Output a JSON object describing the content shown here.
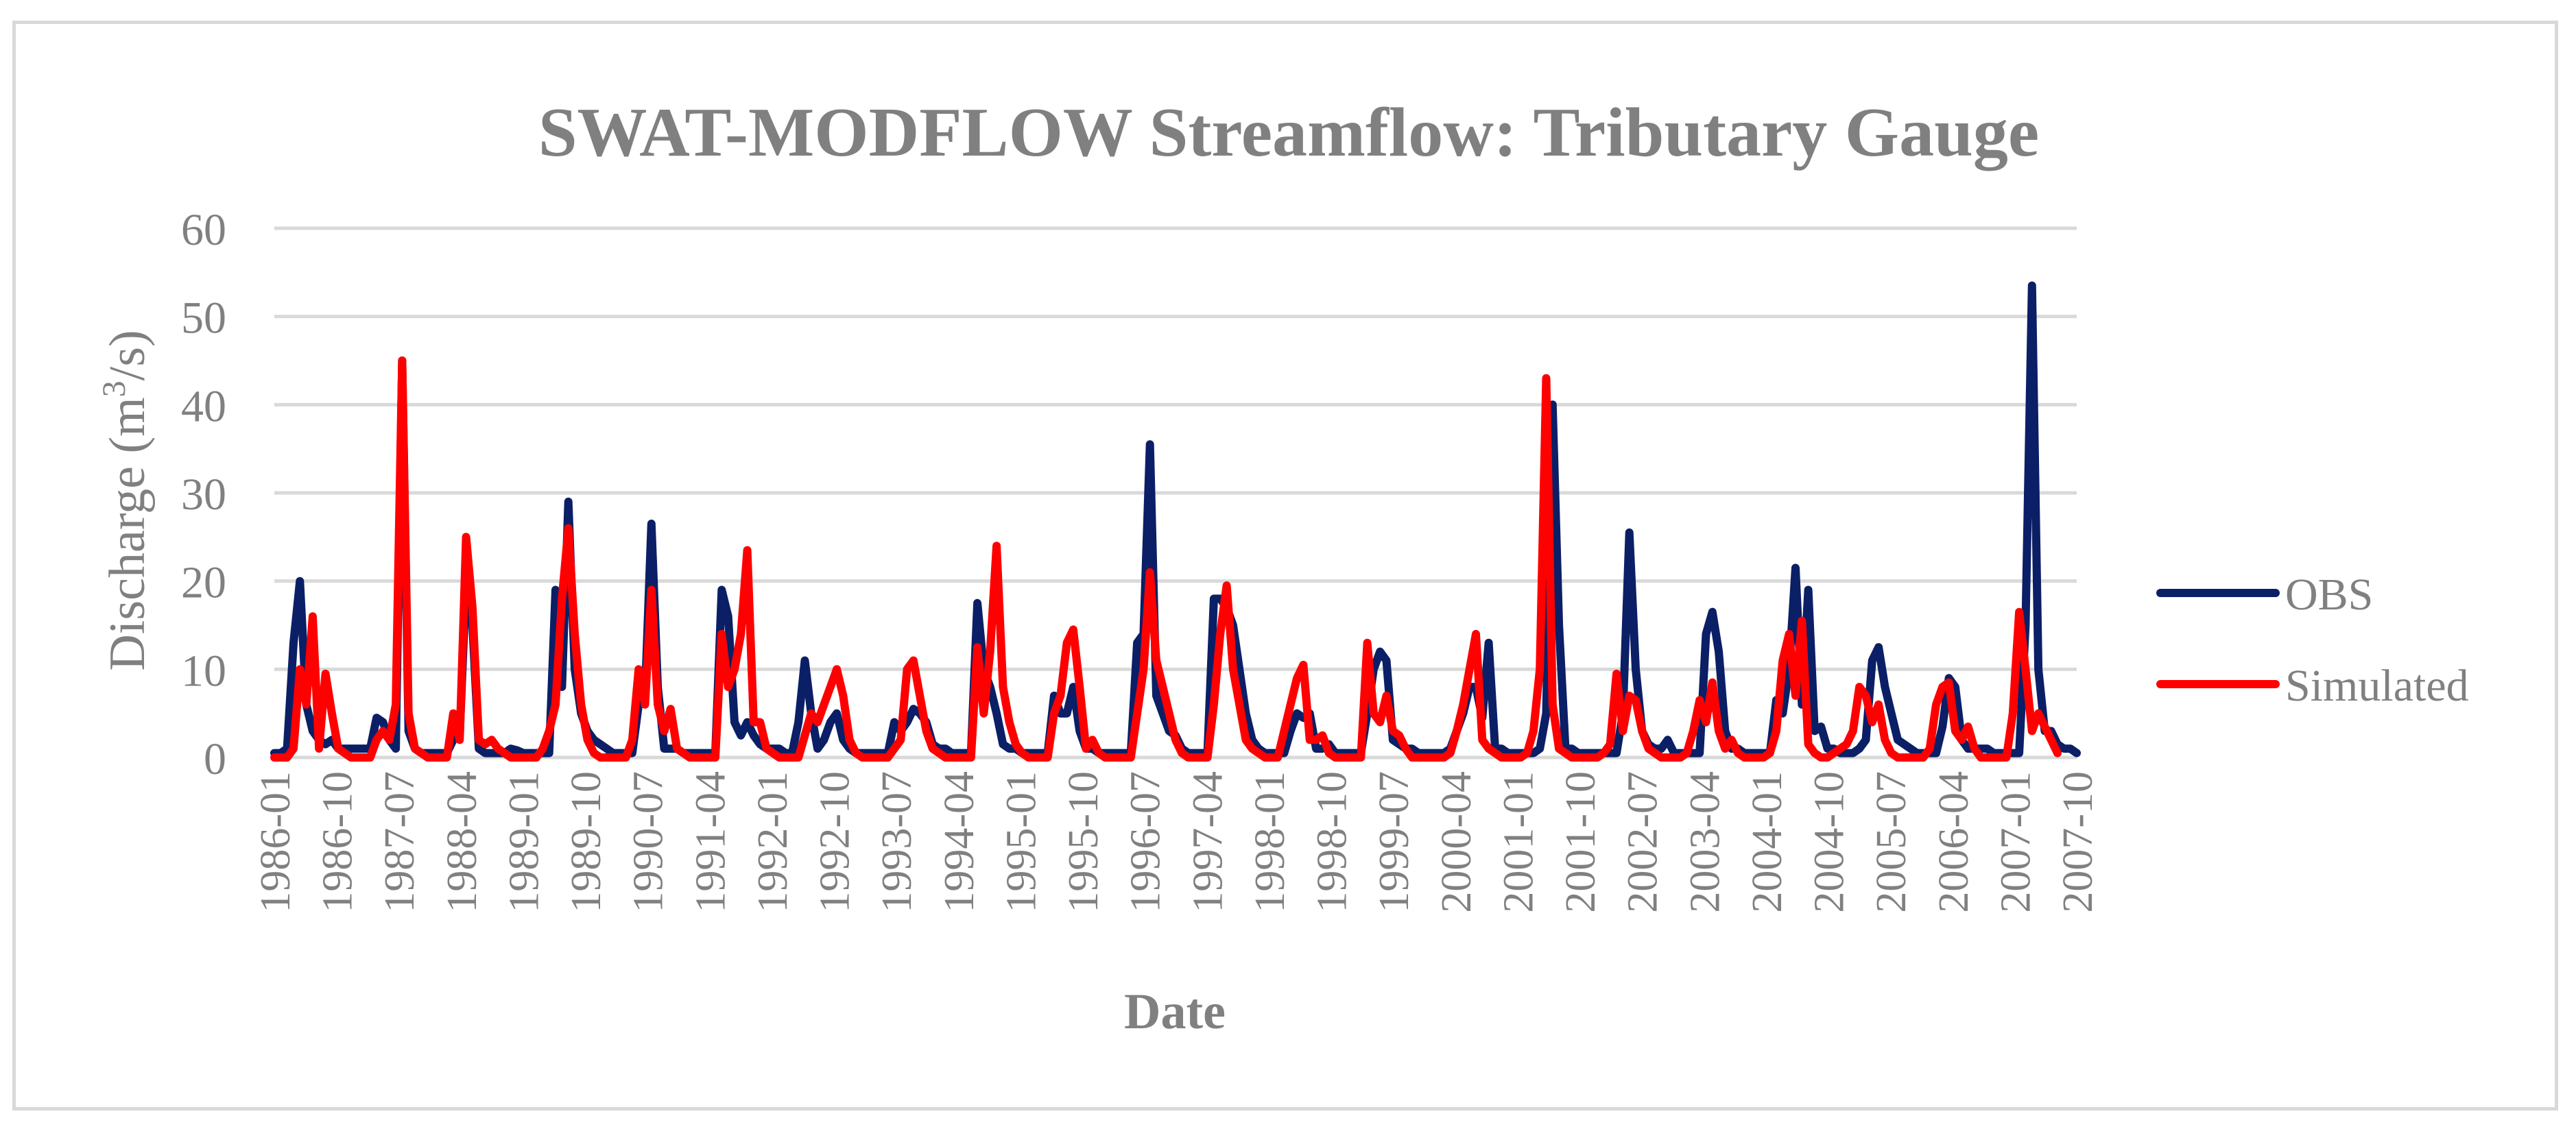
{
  "chart_data": {
    "type": "line",
    "title": "SWAT-MODFLOW Streamflow: Tributary Gauge",
    "xlabel": "Date",
    "ylabel_prefix": "Discharge (m",
    "ylabel_sup": "3",
    "ylabel_suffix": "/s)",
    "ylim": [
      0,
      60
    ],
    "yticks": [
      "0",
      "10",
      "20",
      "30",
      "40",
      "50",
      "60"
    ],
    "grid": true,
    "legend_position": "right",
    "x_start": "1986-01",
    "x_end": "2007-12",
    "xtick_labels": [
      "1986-01",
      "1986-10",
      "1987-07",
      "1988-04",
      "1989-01",
      "1989-10",
      "1990-07",
      "1991-04",
      "1992-01",
      "1992-10",
      "1993-07",
      "1994-04",
      "1995-01",
      "1995-10",
      "1996-07",
      "1997-04",
      "1998-01",
      "1998-10",
      "1999-07",
      "2000-04",
      "2001-01",
      "2001-10",
      "2002-07",
      "2003-04",
      "2004-01",
      "2004-10",
      "2005-07",
      "2006-04",
      "2007-01",
      "2007-10"
    ],
    "series": [
      {
        "name": "OBS",
        "color": "#0b1f66",
        "values": [
          0.5,
          0.5,
          1,
          13,
          20,
          6,
          3,
          2,
          1.5,
          2,
          1,
          1,
          1,
          1,
          1,
          1,
          4.5,
          4,
          2,
          1,
          45,
          3,
          1,
          0.5,
          0.5,
          0.5,
          0.5,
          0.5,
          2,
          2.5,
          20,
          15,
          1,
          0.5,
          0.5,
          0.5,
          0.5,
          1,
          0.8,
          0.5,
          0.5,
          0.5,
          0.5,
          0.5,
          19,
          8,
          29,
          10,
          5,
          3,
          2,
          1.5,
          1,
          0.5,
          0.5,
          0.5,
          0.5,
          6,
          7,
          26.5,
          8,
          1,
          1,
          1,
          0.5,
          0.5,
          0.5,
          0.5,
          0.5,
          0.5,
          19,
          16,
          4,
          2.5,
          4,
          2.5,
          1.5,
          1,
          1,
          1,
          0.5,
          0.5,
          4,
          11,
          5,
          1,
          2,
          4,
          5,
          2,
          1,
          0.5,
          0.5,
          0.5,
          0.5,
          0.5,
          0.5,
          4,
          3,
          4,
          5.5,
          5,
          4,
          1.5,
          1,
          1,
          0.5,
          0.5,
          0.5,
          0.5,
          17.5,
          10,
          8,
          5,
          1.5,
          1,
          1,
          0.5,
          0.5,
          0.5,
          0.5,
          0.5,
          7,
          5,
          5,
          8,
          3,
          1,
          1,
          0.5,
          0.5,
          0.5,
          0.5,
          0.5,
          0.5,
          13,
          14,
          35.5,
          7,
          5,
          3,
          2.5,
          1,
          0.5,
          0.5,
          0.5,
          0.5,
          18,
          18,
          17,
          15,
          10,
          5,
          2,
          1,
          0.5,
          0.5,
          0.5,
          0.5,
          3,
          5,
          4.5,
          5,
          1,
          1,
          1.5,
          0.5,
          0.5,
          0.5,
          0.5,
          0.5,
          5,
          10,
          12,
          11,
          2,
          1.5,
          1,
          1,
          0.5,
          0.5,
          0.5,
          0.5,
          0.5,
          1,
          3,
          5,
          8,
          8,
          4.5,
          13,
          1,
          1,
          0.5,
          0.5,
          0.5,
          0.5,
          0.5,
          1,
          5,
          40,
          15,
          1,
          1,
          0.5,
          0.5,
          0.5,
          0.5,
          0.5,
          0.5,
          0.5,
          5,
          25.5,
          10,
          3,
          1.5,
          1,
          1,
          2,
          0.5,
          0.5,
          0.5,
          0.5,
          0.5,
          14,
          16.5,
          12,
          3,
          1,
          1,
          0.5,
          0.5,
          0.5,
          0.5,
          0.5,
          6.5,
          5,
          10,
          21.5,
          6,
          19,
          3,
          3.5,
          1,
          1,
          0.5,
          0.5,
          0.5,
          1,
          2,
          11,
          12.5,
          8,
          5,
          2,
          1.5,
          1,
          0.5,
          0.5,
          0.5,
          0.5,
          3.5,
          9,
          8,
          2,
          1,
          1,
          1,
          1,
          0.5,
          0.5,
          0.5,
          0.5,
          0.5,
          15,
          53.5,
          10,
          3,
          3,
          1.5,
          1,
          1,
          0.5
        ],
        "_note_ignore": ""
      },
      {
        "name": "Simulated",
        "color": "#ff0000",
        "values": [
          0,
          0,
          0,
          1,
          10,
          6,
          16,
          1,
          9.5,
          5,
          1,
          0.5,
          0,
          0,
          0,
          0,
          2,
          3,
          2,
          6,
          45,
          5,
          1,
          0.5,
          0,
          0,
          0,
          0,
          5,
          2,
          25,
          17,
          2,
          1.5,
          2,
          1,
          0.5,
          0,
          0,
          0,
          0,
          0,
          1,
          3,
          6,
          18,
          26,
          14,
          6,
          2,
          0.5,
          0,
          0,
          0,
          0,
          0,
          2,
          10,
          6,
          19,
          6,
          3,
          5.5,
          1,
          0.5,
          0,
          0,
          0,
          0,
          0,
          14,
          8,
          10,
          14,
          23.5,
          4,
          4,
          1,
          0.5,
          0,
          0,
          0,
          0,
          2.5,
          5,
          4,
          6,
          8,
          10,
          7,
          2,
          0.5,
          0,
          0,
          0,
          0,
          0,
          1,
          2,
          10,
          11,
          7,
          3,
          1,
          0.5,
          0,
          0,
          0,
          0,
          0,
          12.5,
          5,
          12,
          24,
          8,
          4,
          1.5,
          0.5,
          0,
          0,
          0,
          0,
          5,
          7,
          13,
          14.5,
          8,
          1,
          2,
          0.5,
          0,
          0,
          0,
          0,
          0,
          5,
          10,
          21,
          11,
          8,
          5,
          2,
          0.5,
          0,
          0,
          0,
          0,
          6,
          14,
          19.5,
          10,
          6,
          2,
          1,
          0.5,
          0,
          0,
          0,
          3,
          6,
          9,
          10.5,
          2,
          2,
          2.5,
          0.5,
          0,
          0,
          0,
          0,
          0,
          13,
          5,
          4,
          7,
          3,
          2.5,
          1,
          0,
          0,
          0,
          0,
          0,
          0,
          0.5,
          3,
          6,
          10,
          14,
          2,
          1,
          0.5,
          0,
          0,
          0,
          0,
          0.5,
          3,
          10,
          43,
          6,
          1,
          0.5,
          0,
          0,
          0,
          0,
          0,
          0.5,
          1.5,
          9.5,
          3,
          7,
          6.5,
          3,
          1,
          0.5,
          0,
          0,
          0,
          0,
          0.5,
          3,
          6.5,
          4,
          8.5,
          3,
          1,
          2,
          0.5,
          0,
          0,
          0,
          0,
          0.5,
          3,
          11,
          14,
          7,
          15.5,
          1.5,
          0.5,
          0,
          0,
          0.5,
          1,
          1.5,
          3,
          8,
          7,
          4,
          6,
          2,
          0.5,
          0,
          0,
          0,
          0,
          0,
          1,
          6,
          8,
          8.5,
          3,
          2,
          3.5,
          1,
          0,
          0,
          0,
          0,
          0,
          5,
          16.5,
          10,
          3,
          5,
          3.5,
          2,
          0.5
        ]
      }
    ]
  }
}
